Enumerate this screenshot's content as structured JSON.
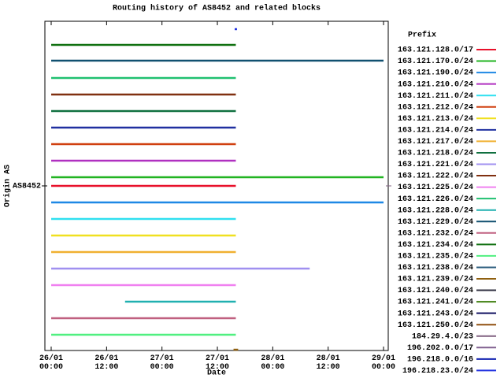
{
  "chart_data": {
    "type": "timeline",
    "title": "Routing history of AS8452 and related blocks",
    "x_label": "Date",
    "y_label": "Origin AS",
    "y_category": "AS8452",
    "legend_title": "Prefix",
    "xlim": [
      "25/01 22:38",
      "29/01 01:01"
    ],
    "xticks": [
      "26/01 00:00",
      "26/01 12:00",
      "27/01 00:00",
      "27/01 12:00",
      "28/01 00:00",
      "28/01 12:00",
      "29/01 00:00"
    ],
    "series": [
      {
        "name": "163.121.128.0/17",
        "color": "#e8102a",
        "start": [
          "26/01 00:00"
        ],
        "end": [
          "27/01 16:00"
        ]
      },
      {
        "name": "163.121.170.0/24",
        "color": "#22b422",
        "start": [
          "26/01 00:00"
        ],
        "end": [
          "29/01 00:00"
        ]
      },
      {
        "name": "163.121.190.0/24",
        "color": "#1e88e5",
        "start": [
          "26/01 00:00"
        ],
        "end": [
          "29/01 00:00"
        ]
      },
      {
        "name": "163.121.210.0/24",
        "color": "#b030c0",
        "start": [
          "26/01 00:00"
        ],
        "end": [
          "27/01 16:00"
        ]
      },
      {
        "name": "163.121.211.0/24",
        "color": "#30e0f0",
        "start": [
          "26/01 00:00"
        ],
        "end": [
          "27/01 16:00"
        ]
      },
      {
        "name": "163.121.212.0/24",
        "color": "#d04010",
        "start": [
          "26/01 00:00"
        ],
        "end": [
          "27/01 16:00"
        ]
      },
      {
        "name": "163.121.213.0/24",
        "color": "#f0e020",
        "start": [
          "26/01 00:00"
        ],
        "end": [
          "27/01 16:00"
        ]
      },
      {
        "name": "163.121.214.0/24",
        "color": "#2030a0",
        "start": [
          "26/01 00:00"
        ],
        "end": [
          "27/01 16:00"
        ]
      },
      {
        "name": "163.121.217.0/24",
        "color": "#f0b030",
        "start": [
          "26/01 00:00"
        ],
        "end": [
          "27/01 16:00"
        ]
      },
      {
        "name": "163.121.218.0/24",
        "color": "#107040",
        "start": [
          "26/01 00:00"
        ],
        "end": [
          "27/01 16:00"
        ]
      },
      {
        "name": "163.121.221.0/24",
        "color": "#a090f0",
        "start": [
          "26/01 00:00"
        ],
        "end": [
          "28/01 08:00"
        ]
      },
      {
        "name": "163.121.222.0/24",
        "color": "#803010",
        "start": [
          "26/01 00:00"
        ],
        "end": [
          "27/01 16:00"
        ]
      },
      {
        "name": "163.121.225.0/24",
        "color": "#f080f0",
        "start": [
          "26/01 00:00"
        ],
        "end": [
          "27/01 16:00"
        ]
      },
      {
        "name": "163.121.226.0/24",
        "color": "#20c070",
        "start": [
          "26/01 00:00"
        ],
        "end": [
          "27/01 16:00"
        ]
      },
      {
        "name": "163.121.228.0/24",
        "color": "#20b0b0",
        "start": [
          "26/01 16:00"
        ],
        "end": [
          "27/01 16:00"
        ]
      },
      {
        "name": "163.121.229.0/24",
        "color": "#105070",
        "start": [
          "26/01 00:00"
        ],
        "end": [
          "29/01 00:00"
        ]
      },
      {
        "name": "163.121.232.0/24",
        "color": "#c06080",
        "start": [
          "26/01 00:00"
        ],
        "end": [
          "27/01 16:00"
        ]
      },
      {
        "name": "163.121.234.0/24",
        "color": "#107010",
        "start": [
          "26/01 00:00"
        ],
        "end": [
          "27/01 16:00"
        ]
      },
      {
        "name": "163.121.235.0/24",
        "color": "#50f080",
        "start": [
          "26/01 00:00"
        ],
        "end": [
          "27/01 16:00"
        ]
      },
      {
        "name": "163.121.238.0/24",
        "color": "#306080",
        "start": [],
        "end": []
      },
      {
        "name": "163.121.239.0/24",
        "color": "#906010",
        "start": [
          "27/01 15:30"
        ],
        "end": [
          "27/01 16:30"
        ]
      },
      {
        "name": "163.121.240.0/24",
        "color": "#303040",
        "start": [],
        "end": []
      },
      {
        "name": "163.121.241.0/24",
        "color": "#408010",
        "start": [],
        "end": []
      },
      {
        "name": "163.121.243.0/24",
        "color": "#101060",
        "start": [],
        "end": []
      },
      {
        "name": "163.121.250.0/24",
        "color": "#905010",
        "start": [],
        "end": []
      },
      {
        "name": "184.29.4.0/23",
        "color": "#806080",
        "start": [],
        "end": []
      },
      {
        "name": "196.202.0.0/17",
        "color": "#806090",
        "start": [],
        "end": []
      },
      {
        "name": "196.218.0.0/16",
        "color": "#1020b0",
        "start": [],
        "end": []
      },
      {
        "name": "196.218.23.0/24",
        "color": "#2030e0",
        "start": [
          "27/01 15:45"
        ],
        "end": [
          "27/01 16:15"
        ]
      }
    ]
  }
}
